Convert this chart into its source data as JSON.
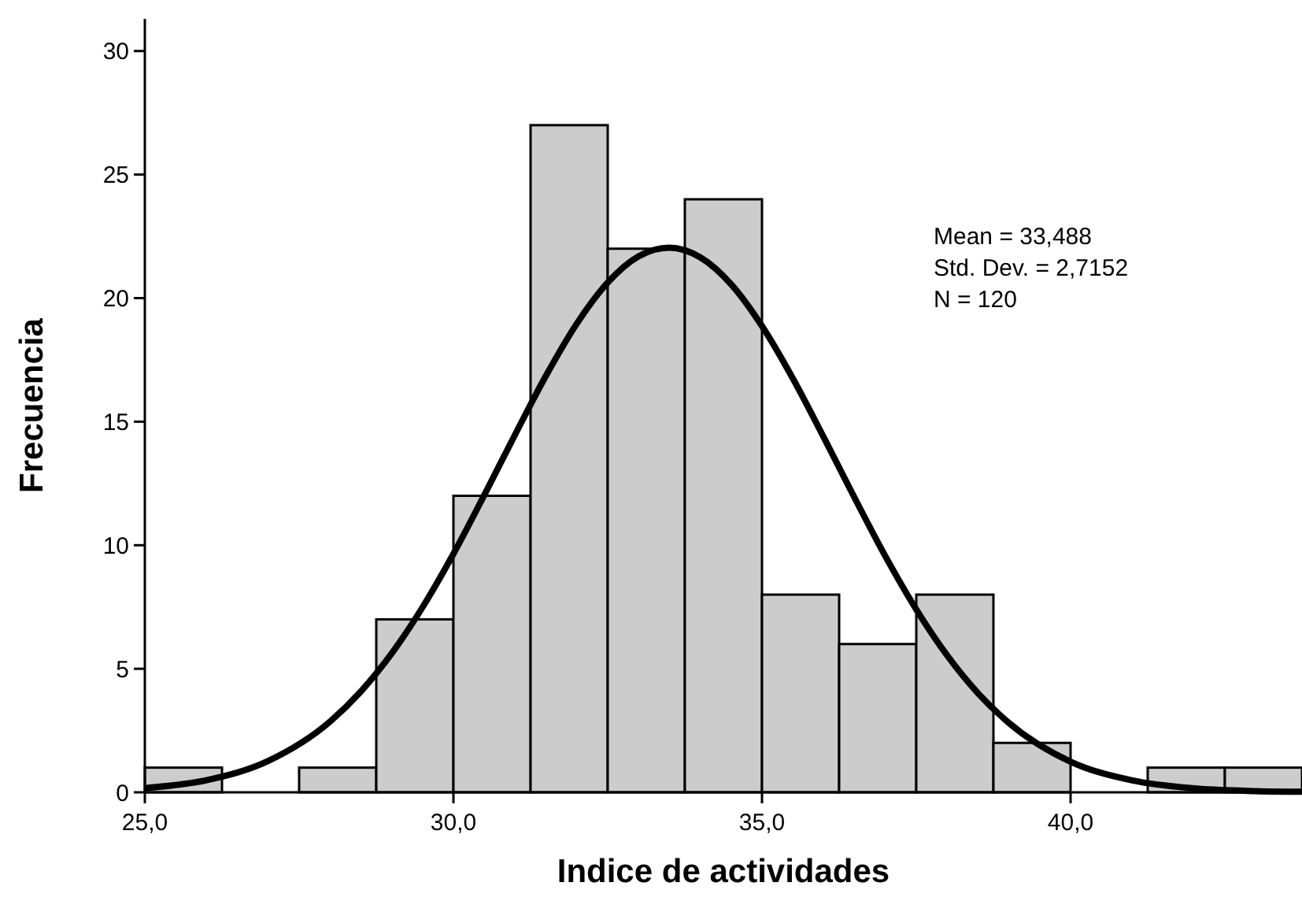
{
  "chart_data": {
    "type": "histogram",
    "xlabel": "Indice de actividades",
    "ylabel": "Frecuencia",
    "xlim": [
      25,
      43.75
    ],
    "ylim": [
      0,
      31.3
    ],
    "xticks": [
      {
        "value": 25,
        "label": "25,0"
      },
      {
        "value": 30,
        "label": "30,0"
      },
      {
        "value": 35,
        "label": "35,0"
      },
      {
        "value": 40,
        "label": "40,0"
      }
    ],
    "yticks": [
      0,
      5,
      10,
      15,
      20,
      25,
      30
    ],
    "grid": false,
    "annotations": [
      "Mean = 33,488",
      "Std. Dev. = 2,7152",
      "N = 120"
    ],
    "series": [
      {
        "color": "#cccccc",
        "bins": [
          25,
          26.25,
          27.5,
          28.75,
          30,
          31.25,
          32.5,
          33.75,
          35,
          36.25,
          37.5,
          38.75,
          40,
          41.25,
          42.5,
          43.75
        ],
        "values": [
          1,
          0,
          1,
          7,
          12,
          27,
          22,
          24,
          8,
          6,
          8,
          2,
          0,
          1,
          1
        ]
      },
      {
        "type": "line",
        "color": "#000000",
        "x": [
          25,
          26,
          27,
          28,
          28.5,
          29,
          29.5,
          30,
          30.5,
          31,
          31.5,
          32,
          32.5,
          33,
          33.5,
          34,
          34.5,
          35,
          35.5,
          36,
          36.5,
          37,
          37.5,
          38,
          38.5,
          39,
          40,
          41,
          42,
          43,
          43.75
        ],
        "values": [
          0.17,
          0.49,
          1.27,
          2.86,
          4.08,
          5.62,
          7.49,
          9.65,
          12.03,
          14.48,
          16.86,
          18.97,
          20.63,
          21.69,
          22.04,
          21.65,
          20.56,
          18.87,
          16.75,
          14.37,
          11.92,
          9.55,
          7.4,
          5.54,
          4.01,
          2.81,
          1.24,
          0.48,
          0.16,
          0.05,
          0.02
        ]
      }
    ]
  }
}
